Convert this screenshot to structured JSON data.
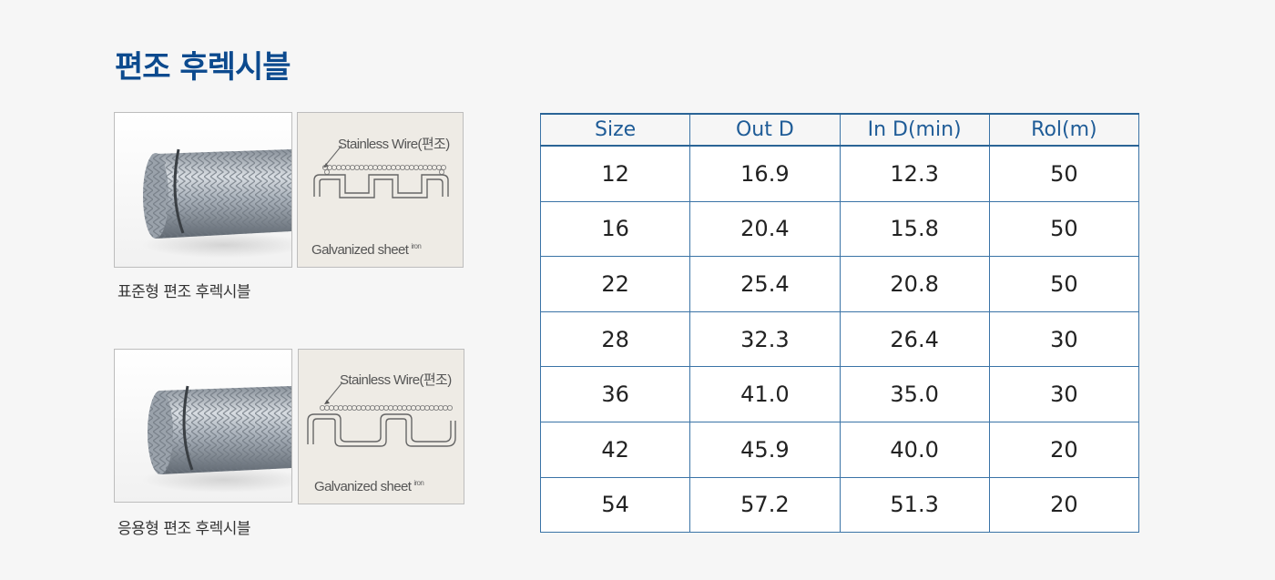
{
  "title": "편조 후렉시블",
  "products": [
    {
      "caption": "표준형 편조 후렉시블",
      "diagram_label_top": "Stainless Wire(편조)",
      "diagram_label_bottom": "Galvanized sheet",
      "diagram_label_small": "iron"
    },
    {
      "caption": "응용형 편조 후렉시블",
      "diagram_label_top": "Stainless Wire(편조)",
      "diagram_label_bottom": "Galvanized sheet",
      "diagram_label_small": "iron"
    }
  ],
  "table": {
    "headers": [
      "Size",
      "Out D",
      "In D(min)",
      "Rol(m)"
    ],
    "rows": [
      [
        "12",
        "16.9",
        "12.3",
        "50"
      ],
      [
        "16",
        "20.4",
        "15.8",
        "50"
      ],
      [
        "22",
        "25.4",
        "20.8",
        "50"
      ],
      [
        "28",
        "32.3",
        "26.4",
        "30"
      ],
      [
        "36",
        "41.0",
        "35.0",
        "30"
      ],
      [
        "42",
        "45.9",
        "40.0",
        "20"
      ],
      [
        "54",
        "57.2",
        "51.3",
        "20"
      ]
    ]
  },
  "colors": {
    "title": "#0c4a8e",
    "table_border": "#3a73a6",
    "header_text": "#1f5c97",
    "background": "#f6f6f6"
  }
}
